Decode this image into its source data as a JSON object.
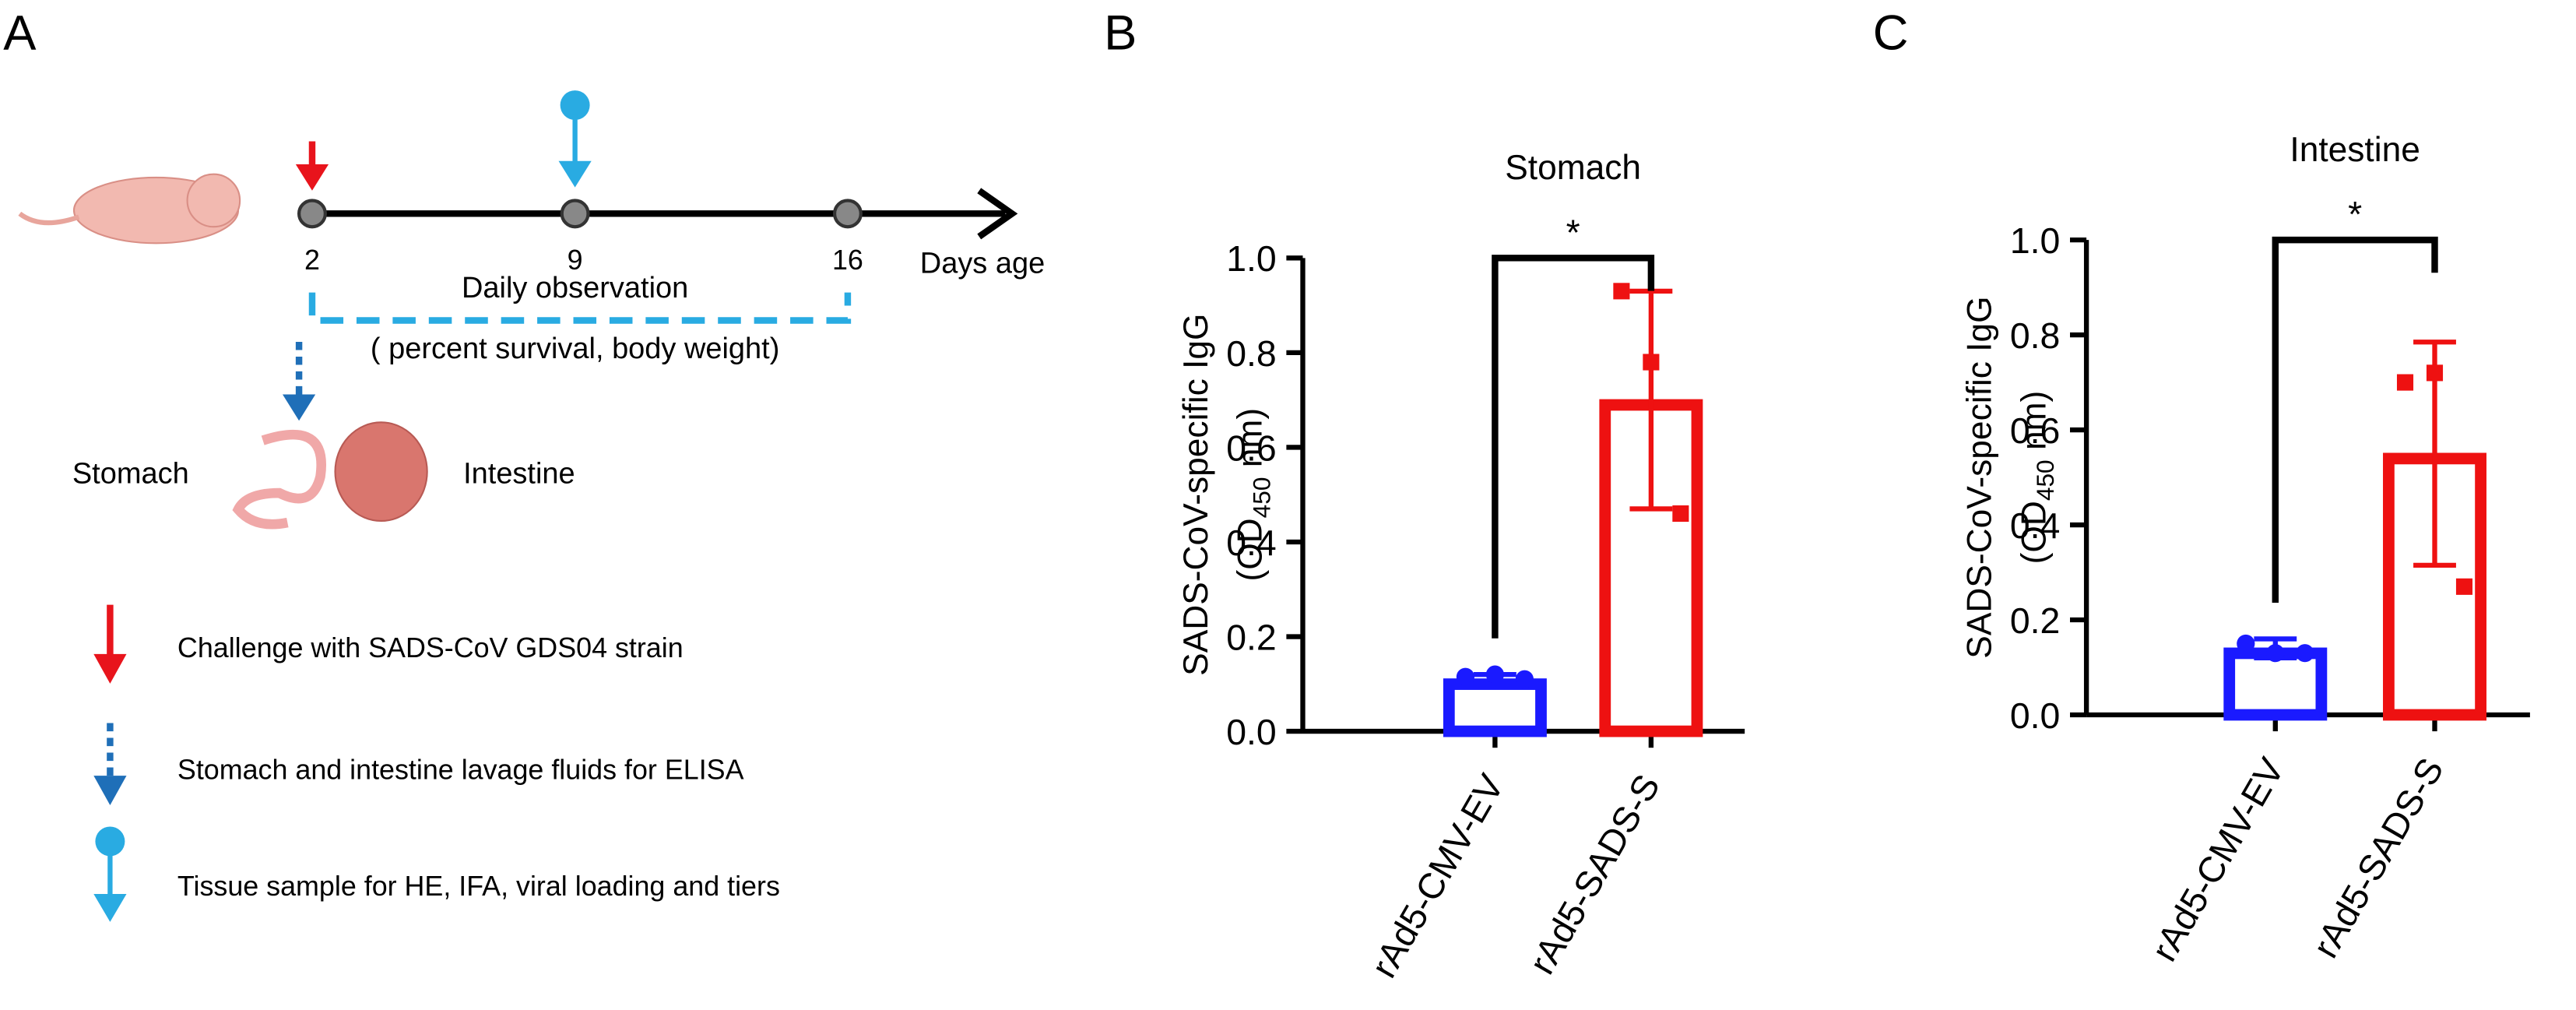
{
  "diagram": {
    "panel": "A",
    "days": [
      "2",
      "9",
      "16"
    ],
    "days_label": "Days age",
    "observation": "Daily observation",
    "observation_note": "( percent survival, body weight)",
    "organs": [
      "Stomach",
      "Intestine"
    ],
    "legend": [
      "Challenge with  SADS-CoV GDS04 strain",
      "Stomach and intestine lavage fluids for ELISA",
      "Tissue sample for HE, IFA, viral loading and tiers"
    ]
  },
  "chart_data": [
    {
      "type": "bar",
      "panel": "B",
      "title": "Stomach",
      "ylabel": [
        "SADS-CoV-specific IgG",
        "(OD",
        "450",
        " nm)"
      ],
      "categories": [
        "rAd5-CMV-EV",
        "rAd5-SADS-S"
      ],
      "colors": [
        "#1a1aff",
        "#ee1111"
      ],
      "markers": [
        "circle",
        "square"
      ],
      "values": [
        0.11,
        0.7
      ],
      "errors": [
        0.01,
        0.23
      ],
      "points": [
        [
          0.115,
          0.12,
          0.11
        ],
        [
          0.93,
          0.78,
          0.46
        ]
      ],
      "annotation": "*",
      "ylim": [
        0,
        1
      ],
      "yticks": [
        {
          "value": 0,
          "label": "0.0"
        },
        0.2,
        0.4,
        0.6,
        0.8,
        {
          "value": 1,
          "label": "1.0"
        }
      ]
    },
    {
      "type": "bar",
      "panel": "C",
      "title": "Intestine",
      "ylabel": [
        "SADS-CoV-specific IgG",
        "(OD",
        "450",
        " nm)"
      ],
      "categories": [
        "rAd5-CMV-EV",
        "rAd5-SADS-S"
      ],
      "colors": [
        "#1a1aff",
        "#ee1111"
      ],
      "markers": [
        "circle",
        "square"
      ],
      "values": [
        0.14,
        0.55
      ],
      "errors": [
        0.02,
        0.235
      ],
      "points": [
        [
          0.15,
          0.13,
          0.13
        ],
        [
          0.7,
          0.72,
          0.27
        ]
      ],
      "annotation": "*",
      "ylim": [
        0,
        1
      ],
      "yticks": [
        {
          "value": 0,
          "label": "0.0"
        },
        0.2,
        0.4,
        0.6,
        0.8,
        {
          "value": 1,
          "label": "1.0"
        }
      ]
    }
  ]
}
